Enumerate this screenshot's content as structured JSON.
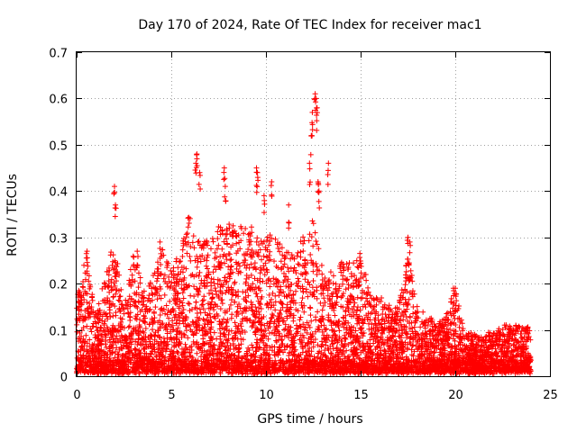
{
  "chart_data": {
    "type": "scatter",
    "title": "Day 170 of 2024, Rate Of TEC Index for receiver mac1",
    "xlabel": "GPS time / hours",
    "ylabel": "ROTI / TECUs",
    "xlim": [
      0,
      25
    ],
    "ylim": [
      0,
      0.7
    ],
    "xticks": [
      0,
      5,
      10,
      15,
      20,
      25
    ],
    "yticks": [
      0,
      0.1,
      0.2,
      0.3,
      0.4,
      0.5,
      0.6,
      0.7
    ],
    "xtick_labels": [
      "0",
      "5",
      "10",
      "15",
      "20",
      "25"
    ],
    "ytick_labels": [
      "0",
      "0.1",
      "0.2",
      "0.3",
      "0.4",
      "0.5",
      "0.6",
      "0.7"
    ],
    "grid": true,
    "marker": "+",
    "color": "#ff0000",
    "envelope": {
      "description": "approximate local upper envelope of ROTI values (hours, TECU/s)",
      "x": [
        0,
        0.5,
        1,
        1.5,
        2,
        2.5,
        3,
        3.5,
        4,
        4.5,
        5,
        5.5,
        6,
        6.5,
        7,
        7.5,
        8,
        8.5,
        9,
        9.5,
        10,
        10.5,
        11,
        11.5,
        12,
        12.5,
        13,
        13.5,
        14,
        14.5,
        15,
        15.5,
        16,
        16.5,
        17,
        17.5,
        18,
        18.5,
        19,
        19.5,
        20,
        20.5,
        21,
        21.5,
        22,
        22.5,
        23,
        23.5,
        24
      ],
      "y": [
        0.16,
        0.26,
        0.13,
        0.2,
        0.3,
        0.14,
        0.26,
        0.18,
        0.2,
        0.27,
        0.22,
        0.27,
        0.35,
        0.3,
        0.28,
        0.31,
        0.33,
        0.3,
        0.33,
        0.3,
        0.3,
        0.3,
        0.27,
        0.25,
        0.3,
        0.33,
        0.23,
        0.21,
        0.24,
        0.24,
        0.26,
        0.17,
        0.16,
        0.14,
        0.14,
        0.26,
        0.14,
        0.13,
        0.1,
        0.13,
        0.18,
        0.08,
        0.08,
        0.07,
        0.09,
        0.1,
        0.1,
        0.1,
        0.1
      ]
    },
    "spikes": [
      {
        "x": 0.1,
        "y": 0.16
      },
      {
        "x": 0.55,
        "y": 0.27
      },
      {
        "x": 2.0,
        "y": 0.41
      },
      {
        "x": 2.05,
        "y": 0.37
      },
      {
        "x": 3.2,
        "y": 0.27
      },
      {
        "x": 4.4,
        "y": 0.29
      },
      {
        "x": 6.3,
        "y": 0.46
      },
      {
        "x": 6.35,
        "y": 0.48
      },
      {
        "x": 6.5,
        "y": 0.44
      },
      {
        "x": 7.8,
        "y": 0.45
      },
      {
        "x": 7.85,
        "y": 0.41
      },
      {
        "x": 9.5,
        "y": 0.45
      },
      {
        "x": 9.55,
        "y": 0.44
      },
      {
        "x": 9.9,
        "y": 0.39
      },
      {
        "x": 10.3,
        "y": 0.42
      },
      {
        "x": 11.2,
        "y": 0.37
      },
      {
        "x": 12.3,
        "y": 0.46
      },
      {
        "x": 12.4,
        "y": 0.52
      },
      {
        "x": 12.45,
        "y": 0.57
      },
      {
        "x": 12.6,
        "y": 0.61
      },
      {
        "x": 12.65,
        "y": 0.6
      },
      {
        "x": 12.7,
        "y": 0.58
      },
      {
        "x": 12.75,
        "y": 0.42
      },
      {
        "x": 12.8,
        "y": 0.4
      },
      {
        "x": 13.3,
        "y": 0.46
      },
      {
        "x": 17.5,
        "y": 0.3
      },
      {
        "x": 17.55,
        "y": 0.24
      },
      {
        "x": 17.6,
        "y": 0.29
      },
      {
        "x": 19.9,
        "y": 0.19
      },
      {
        "x": 20.0,
        "y": 0.19
      }
    ]
  }
}
